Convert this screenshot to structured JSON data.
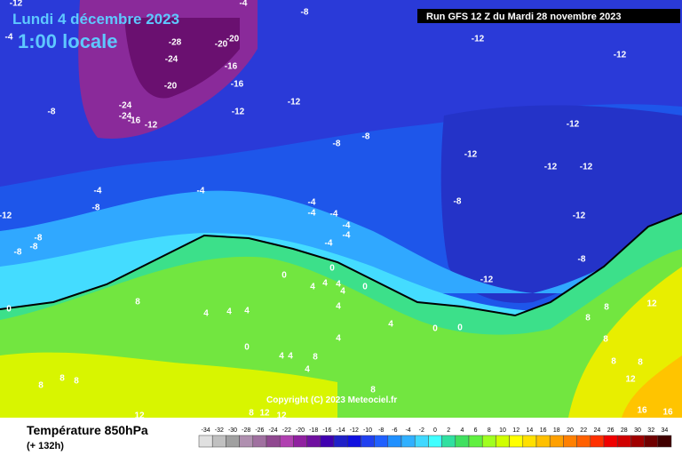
{
  "header": {
    "date": "Lundi 4 décembre 2023",
    "time": "1:00 locale",
    "run": "Run GFS 12 Z du Mardi 28 novembre 2023"
  },
  "footer": {
    "title": "Température 850hPa",
    "lead": "(+ 132h)",
    "copyright": "Copyright (C) 2023 Meteociel.fr"
  },
  "colorbar": {
    "labels": [
      -34,
      -32,
      -30,
      -28,
      -26,
      -24,
      -22,
      -20,
      -18,
      -16,
      -14,
      -12,
      -10,
      -8,
      -6,
      -4,
      -2,
      0,
      2,
      4,
      6,
      8,
      10,
      12,
      14,
      16,
      18,
      20,
      22,
      24,
      26,
      28,
      30,
      32,
      34
    ],
    "colors": [
      "#e0e0e0",
      "#c0c0c0",
      "#a0a0a0",
      "#b090b0",
      "#a070a0",
      "#904890",
      "#b040b0",
      "#9020a0",
      "#7010a0",
      "#4000b0",
      "#2020c8",
      "#1010e0",
      "#2040f0",
      "#2060ff",
      "#2090ff",
      "#30b0ff",
      "#40d8ff",
      "#40ffff",
      "#30e0a0",
      "#40e060",
      "#60f040",
      "#a0ff20",
      "#d0ff00",
      "#ffff00",
      "#ffe000",
      "#ffc000",
      "#ffa000",
      "#ff8000",
      "#ff6000",
      "#ff3000",
      "#f00000",
      "#d00000",
      "#a00000",
      "#700000",
      "#400000"
    ]
  },
  "contour_labels": [
    "-12",
    "-4",
    "-8",
    "-4",
    "-28",
    "-20",
    "-20",
    "-24",
    "-16",
    "-20",
    "-16",
    "-24",
    "-24",
    "-16",
    "-12",
    "-12",
    "-12",
    "-8",
    "-8",
    "-8",
    "-12",
    "-12",
    "-12",
    "-12",
    "-12",
    "-12",
    "-12",
    "-8",
    "-8",
    "-12",
    "-4",
    "-8",
    "-4",
    "-12",
    "-8",
    "-8",
    "-8",
    "-4",
    "-4",
    "-4",
    "-4",
    "-4",
    "-4",
    "0",
    "0",
    "0",
    "4",
    "4",
    "4",
    "4",
    "0",
    "8",
    "4",
    "4",
    "4",
    "4",
    "4",
    "4",
    "0",
    "0",
    "0",
    "4",
    "4",
    "4",
    "8",
    "8",
    "8",
    "8",
    "8",
    "8",
    "12",
    "12",
    "12",
    "8",
    "8",
    "8",
    "12",
    "8",
    "8",
    "12",
    "16",
    "16"
  ]
}
